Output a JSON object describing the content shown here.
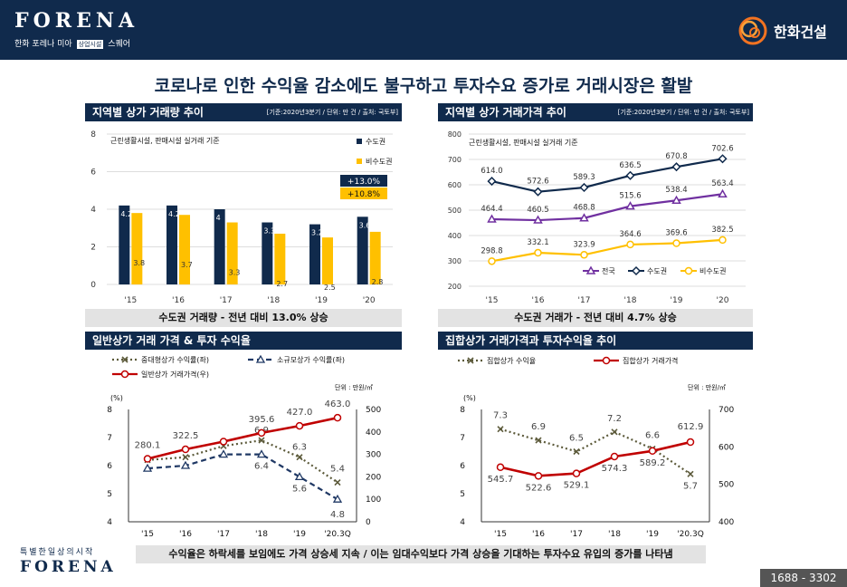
{
  "header": {
    "brand": "FORENA",
    "brand_sub_a": "한화 포레나 미아",
    "brand_sub_tag": "상업시설",
    "brand_sub_b": "스퀘어",
    "company": "한화건설"
  },
  "headline": "코로나로 인한 수익율 감소에도 불구하고 투자수요 증가로 거래시장은 활발",
  "sections": {
    "s1": {
      "title": "지역별 상가 거래량 추이",
      "note": "[기준:2020년3분기 / 단위: 만 건 / 출처: 국토부]",
      "summary": "수도권 거래량 - 전년 대비 13.0% 상승"
    },
    "s2": {
      "title": "지역별 상가 거래가격 추이",
      "note": "[기준:2020년3분기 / 단위: 만 건 / 출처: 국토부]",
      "summary": "수도권 거래가 - 전년 대비 4.7% 상승"
    },
    "s3": {
      "title": "일반상가 거래 가격 & 투자 수익율"
    },
    "s4": {
      "title": "집합상가 거래가격과 투자수익율 추이"
    }
  },
  "footer": {
    "summary": "수익율은 하락세를 보임에도 가격 상승세 지속 / 이는 임대수익보다 가격 상승을 기대하는 투자수요 유입의 증가를 나타냄",
    "tagline": "특별한일상의시작",
    "brand": "FORENA",
    "phone": "1688 - 3302"
  },
  "chart_data": [
    {
      "type": "bar",
      "categories": [
        "'15",
        "'16",
        "'17",
        "'18",
        "'19",
        "'20"
      ],
      "ylim": [
        0,
        8
      ],
      "yticks": [
        0,
        2,
        4,
        6,
        8
      ],
      "note": "근린생활시설, 판매시설 실거래 기준",
      "series": [
        {
          "name": "수도권",
          "values": [
            4.2,
            4.2,
            4,
            3.3,
            3.2,
            3.6
          ],
          "color": "#102a4c"
        },
        {
          "name": "비수도권",
          "values": [
            3.8,
            3.7,
            3.3,
            2.7,
            2.5,
            2.8
          ],
          "color": "#ffc000"
        }
      ],
      "annotations": [
        {
          "text": "+13.0%",
          "color": "#102a4c"
        },
        {
          "text": "+10.8%",
          "color": "#ffc000"
        }
      ]
    },
    {
      "type": "line",
      "categories": [
        "'15",
        "'16",
        "'17",
        "'18",
        "'19",
        "'20"
      ],
      "ylim": [
        200,
        800
      ],
      "yticks": [
        200,
        300,
        400,
        500,
        600,
        700,
        800
      ],
      "note": "근린생활시설, 판매시설 실거래 기준",
      "series": [
        {
          "name": "전국",
          "values": [
            464.4,
            460.5,
            468.8,
            515.6,
            538.4,
            563.4
          ],
          "color": "#7030a0",
          "marker": "triangle"
        },
        {
          "name": "수도권",
          "values": [
            614.0,
            572.6,
            589.3,
            636.5,
            670.8,
            702.6
          ],
          "color": "#102a4c",
          "marker": "diamond"
        },
        {
          "name": "비수도권",
          "values": [
            298.8,
            332.1,
            323.9,
            364.6,
            369.6,
            382.5
          ],
          "color": "#ffc000",
          "marker": "circle"
        }
      ],
      "labels": {
        "전국": [
          "464.4",
          "460.5",
          "468.8",
          "515.6",
          "538.4",
          "563.4"
        ],
        "수도권": [
          "614.0",
          "572.6",
          "589.3",
          "636.5",
          "670.8",
          "702.6"
        ],
        "비수도권": [
          "298.8",
          "332.1",
          "323.9",
          "364.6",
          "369.6",
          "382.5"
        ]
      }
    },
    {
      "type": "line",
      "categories": [
        "'15",
        "'16",
        "'17",
        "'18",
        "'19",
        "'20.3Q"
      ],
      "ylabel": "(%)",
      "y2label": "단위 : 만원/㎡",
      "ylim": [
        4,
        8
      ],
      "yticks": [
        4,
        5,
        6,
        7,
        8
      ],
      "y2lim": [
        0,
        500
      ],
      "y2ticks": [
        0,
        100,
        200,
        300,
        400,
        500
      ],
      "series": [
        {
          "name": "중대형상가 수익률(좌)",
          "axis": "left",
          "values": [
            6.2,
            6.3,
            6.7,
            6.9,
            6.3,
            5.4
          ],
          "labels": [
            "",
            "",
            "",
            "6.9",
            "6.3",
            "5.4"
          ],
          "color": "#5c5a3a",
          "style": "dotted"
        },
        {
          "name": "소규모상가 수익률(좌)",
          "axis": "left",
          "values": [
            5.9,
            6.0,
            6.4,
            6.4,
            5.6,
            4.8
          ],
          "labels": [
            "",
            "",
            "",
            "6.4",
            "5.6",
            "4.8"
          ],
          "color": "#1f3864",
          "style": "dashed"
        },
        {
          "name": "일반상가 거래가격(우)",
          "axis": "right",
          "values": [
            280.1,
            322.5,
            357,
            395.6,
            427.0,
            463.0
          ],
          "labels": [
            "280.1",
            "322.5",
            "",
            "395.6",
            "427.0",
            "463.0"
          ],
          "color": "#c00000",
          "style": "solid"
        }
      ]
    },
    {
      "type": "line",
      "categories": [
        "'15",
        "'16",
        "'17",
        "'18",
        "'19",
        "'20.3Q"
      ],
      "ylabel": "(%)",
      "y2label": "단위 : 만원/㎡",
      "ylim": [
        4,
        8
      ],
      "yticks": [
        4,
        5,
        6,
        7,
        8
      ],
      "y2lim": [
        400,
        700
      ],
      "y2ticks": [
        400,
        500,
        600,
        700
      ],
      "series": [
        {
          "name": "집합상가 수익율",
          "axis": "left",
          "values": [
            7.3,
            6.9,
            6.5,
            7.2,
            6.6,
            5.7
          ],
          "labels": [
            "7.3",
            "6.9",
            "6.5",
            "7.2",
            "6.6",
            "5.7"
          ],
          "color": "#5c5a3a",
          "style": "dotted"
        },
        {
          "name": "집합상가 거래가격",
          "axis": "right",
          "values": [
            545.7,
            522.6,
            529.1,
            574.3,
            589.2,
            612.9
          ],
          "labels": [
            "545.7",
            "522.6",
            "529.1",
            "574.3",
            "589.2",
            "612.9"
          ],
          "color": "#c00000",
          "style": "solid"
        }
      ]
    }
  ]
}
